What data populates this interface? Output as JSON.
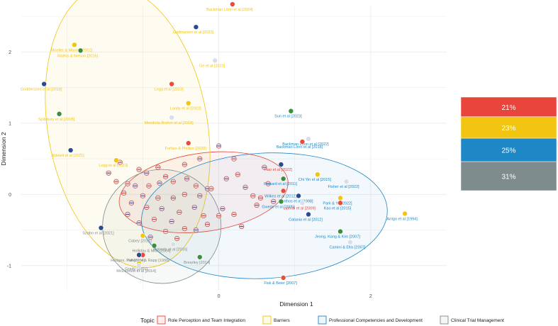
{
  "chart_data": {
    "type": "scatter",
    "xlabel": "Dimension 1",
    "ylabel": "Dimension 2",
    "xlim": [
      -2.6,
      3.0
    ],
    "ylim": [
      -1.35,
      2.65
    ],
    "xticks": [
      0,
      2
    ],
    "yticks": [
      -1,
      0,
      1,
      2
    ],
    "legend": {
      "title": "Topic",
      "position": "bottom",
      "entries": [
        {
          "name": "Role Perception and Team Integration",
          "color": "#e8453c"
        },
        {
          "name": "Barriers",
          "color": "#f2c511"
        },
        {
          "name": "Professional Competencies and Development",
          "color": "#1e88c7"
        },
        {
          "name": "Clinical Trial Management",
          "color": "#7f8c8d"
        }
      ]
    },
    "ellipses": [
      {
        "topic": "Role Perception and Team Integration",
        "cx": -0.2,
        "cy": 0.03,
        "rx": 1.12,
        "ry": 0.55,
        "angle": -8
      },
      {
        "topic": "Barriers",
        "cx": -1.2,
        "cy": 0.95,
        "rx": 1.05,
        "ry": 2.0,
        "angle": -10
      },
      {
        "topic": "Professional Competencies and Development",
        "cx": 0.6,
        "cy": -0.3,
        "rx": 1.62,
        "ry": 0.88,
        "angle": -3
      },
      {
        "topic": "Clinical Trial Management",
        "cx": -0.75,
        "cy": -0.45,
        "rx": 0.78,
        "ry": 0.8,
        "angle": 0
      }
    ],
    "labeled_points": [
      {
        "label": "Backman Lönn et al [2024]",
        "x": 0.18,
        "y": 2.67,
        "topic": "Barriers"
      },
      {
        "label": "Gudmarsen et al [2023]",
        "x": -0.3,
        "y": 2.35,
        "topic": "Barriers"
      },
      {
        "label": "Mueller & Manns [2002]",
        "x": -1.9,
        "y": 2.1,
        "topic": "Barriers"
      },
      {
        "label": "Mathis & Nelson [2016]",
        "x": -1.82,
        "y": 2.02,
        "topic": "Barriers"
      },
      {
        "label": "Ge et al [2023]",
        "x": -0.05,
        "y": 1.88,
        "topic": "Barriers"
      },
      {
        "label": "Legg et al [2023]",
        "x": -0.62,
        "y": 1.55,
        "topic": "Barriers"
      },
      {
        "label": "Godderssen et al [2018]",
        "x": -2.3,
        "y": 1.55,
        "topic": "Barriers"
      },
      {
        "label": "Landy et al [2022]",
        "x": -0.4,
        "y": 1.28,
        "topic": "Barriers"
      },
      {
        "label": "Spilsbury et al [2008]",
        "x": -2.1,
        "y": 1.13,
        "topic": "Barriers"
      },
      {
        "label": "Mendiola-Brehm et al [2018]",
        "x": -0.62,
        "y": 1.08,
        "topic": "Barriers"
      },
      {
        "label": "Forbes & Phillips [2020]",
        "x": -0.4,
        "y": 0.72,
        "topic": "Barriers"
      },
      {
        "label": "Bidwell et al [2021]",
        "x": -1.95,
        "y": 0.62,
        "topic": "Barriers"
      },
      {
        "label": "Legg et al [2023]",
        "x": -1.35,
        "y": 0.48,
        "topic": "Barriers"
      },
      {
        "label": "Sun et al [2023]",
        "x": 0.95,
        "y": 1.17,
        "topic": "Professional Competencies and Development"
      },
      {
        "label": "Backman Lönn et al [2022]",
        "x": 1.18,
        "y": 0.78,
        "topic": "Professional Competencies and Development"
      },
      {
        "label": "Backman Lönn et al [2018]",
        "x": 1.1,
        "y": 0.74,
        "topic": "Professional Competencies and Development"
      },
      {
        "label": "Hao et al [2022]",
        "x": 0.82,
        "y": 0.42,
        "topic": "Role Perception and Team Integration"
      },
      {
        "label": "Chi Yin et al [2015]",
        "x": 1.3,
        "y": 0.28,
        "topic": "Professional Competencies and Development"
      },
      {
        "label": "Rickard et al [2011]",
        "x": 0.85,
        "y": 0.22,
        "topic": "Professional Competencies and Development"
      },
      {
        "label": "Fisher et al [2022]",
        "x": 1.68,
        "y": 0.18,
        "topic": "Professional Competencies and Development"
      },
      {
        "label": "Wilkes et al [2012]",
        "x": 0.85,
        "y": 0.05,
        "topic": "Professional Competencies and Development"
      },
      {
        "label": "Xanthos et al [1998]",
        "x": 1.05,
        "y": -0.02,
        "topic": "Professional Competencies and Development"
      },
      {
        "label": "Park & Yu [2022]",
        "x": 1.6,
        "y": -0.05,
        "topic": "Professional Competencies and Development"
      },
      {
        "label": "Gwede et al [2005]",
        "x": 0.82,
        "y": -0.1,
        "topic": "Professional Competencies and Development"
      },
      {
        "label": "Liptroti et al [2009]",
        "x": 1.1,
        "y": -0.12,
        "topic": "Role Perception and Team Integration"
      },
      {
        "label": "Kao et al [2015]",
        "x": 1.6,
        "y": -0.12,
        "topic": "Professional Competencies and Development"
      },
      {
        "label": "Catania et al [2012]",
        "x": 1.18,
        "y": -0.28,
        "topic": "Professional Competencies and Development"
      },
      {
        "label": "Arrigo et al [1994]",
        "x": 2.45,
        "y": -0.27,
        "topic": "Professional Competencies and Development"
      },
      {
        "label": "Jeong, Kang & Kim [2007]",
        "x": 1.6,
        "y": -0.52,
        "topic": "Professional Competencies and Development"
      },
      {
        "label": "Camini & Ellis [2007]",
        "x": 1.73,
        "y": -0.67,
        "topic": "Professional Competencies and Development"
      },
      {
        "label": "Fisk & Beier [2007]",
        "x": 0.85,
        "y": -1.17,
        "topic": "Professional Competencies and Development"
      },
      {
        "label": "Szabo et al [2021]",
        "x": -1.55,
        "y": -0.47,
        "topic": "Clinical Trial Management"
      },
      {
        "label": "Cabey [2016]",
        "x": -1.0,
        "y": -0.58,
        "topic": "Clinical Trial Management"
      },
      {
        "label": "Holliday & Mills [2004]",
        "x": -0.85,
        "y": -0.72,
        "topic": "Clinical Trial Management"
      },
      {
        "label": "Roberts et al [2016]",
        "x": -0.6,
        "y": -0.7,
        "topic": "Clinical Trial Management"
      },
      {
        "label": "Hodges, Patterson & Rapp [1990]",
        "x": -1.0,
        "y": -0.85,
        "topic": "Clinical Trial Management"
      },
      {
        "label": "NA [2014]",
        "x": -1.05,
        "y": -0.85,
        "topic": "Clinical Trial Management"
      },
      {
        "label": "Grady [2001]",
        "x": -1.05,
        "y": -0.97,
        "topic": "Clinical Trial Management"
      },
      {
        "label": "Brearley [2014]",
        "x": -0.25,
        "y": -0.88,
        "topic": "Clinical Trial Management"
      },
      {
        "label": "McDermott et al [2014]",
        "x": -1.05,
        "y": -1.0,
        "topic": "Clinical Trial Management"
      }
    ],
    "unlabeled_points": [
      [
        -1.05,
        0.35
      ],
      [
        -0.95,
        0.3
      ],
      [
        -0.8,
        0.38
      ],
      [
        -0.7,
        0.25
      ],
      [
        -1.2,
        0.15
      ],
      [
        -1.1,
        0.12
      ],
      [
        -0.92,
        0.12
      ],
      [
        -0.78,
        0.16
      ],
      [
        -0.6,
        0.18
      ],
      [
        -0.42,
        0.22
      ],
      [
        -0.3,
        0.12
      ],
      [
        -0.15,
        0.08
      ],
      [
        -1.25,
        0.02
      ],
      [
        -1.0,
        -0.02
      ],
      [
        -0.8,
        -0.05
      ],
      [
        -0.6,
        -0.05
      ],
      [
        -0.45,
        0.0
      ],
      [
        -0.25,
        -0.02
      ],
      [
        -0.1,
        0.08
      ],
      [
        0.1,
        0.22
      ],
      [
        0.25,
        0.28
      ],
      [
        0.35,
        0.1
      ],
      [
        0.45,
        -0.02
      ],
      [
        0.5,
        -0.15
      ],
      [
        0.55,
        -0.05
      ],
      [
        -1.15,
        -0.12
      ],
      [
        -0.95,
        -0.18
      ],
      [
        -0.75,
        -0.2
      ],
      [
        -0.52,
        -0.25
      ],
      [
        -0.32,
        -0.18
      ],
      [
        -0.2,
        -0.3
      ],
      [
        0.05,
        -0.2
      ],
      [
        0.2,
        -0.28
      ],
      [
        -1.05,
        -0.4
      ],
      [
        -0.85,
        -0.35
      ],
      [
        -0.62,
        -0.38
      ],
      [
        -0.45,
        -0.48
      ],
      [
        -0.3,
        -0.5
      ],
      [
        -0.15,
        -0.42
      ],
      [
        -1.2,
        -0.28
      ],
      [
        -0.7,
        -0.52
      ],
      [
        -0.9,
        -0.6
      ],
      [
        -0.55,
        -0.62
      ],
      [
        0.3,
        -0.45
      ],
      [
        0.0,
        -0.3
      ],
      [
        -0.25,
        0.5
      ],
      [
        -0.45,
        0.42
      ],
      [
        0.0,
        0.68
      ],
      [
        0.2,
        0.5
      ],
      [
        0.6,
        0.38
      ],
      [
        0.65,
        0.15
      ],
      [
        0.72,
        -0.1
      ],
      [
        -1.3,
        0.45
      ],
      [
        -1.45,
        0.3
      ],
      [
        -1.35,
        0.18
      ]
    ],
    "waffle": {
      "position": "right",
      "segments": [
        {
          "label": "21%",
          "value": 21,
          "color": "#e8453c"
        },
        {
          "label": "23%",
          "value": 23,
          "color": "#f2c511"
        },
        {
          "label": "25%",
          "value": 25,
          "color": "#1e88c7"
        },
        {
          "label": "31%",
          "value": 31,
          "color": "#7f8c8d"
        }
      ]
    }
  }
}
